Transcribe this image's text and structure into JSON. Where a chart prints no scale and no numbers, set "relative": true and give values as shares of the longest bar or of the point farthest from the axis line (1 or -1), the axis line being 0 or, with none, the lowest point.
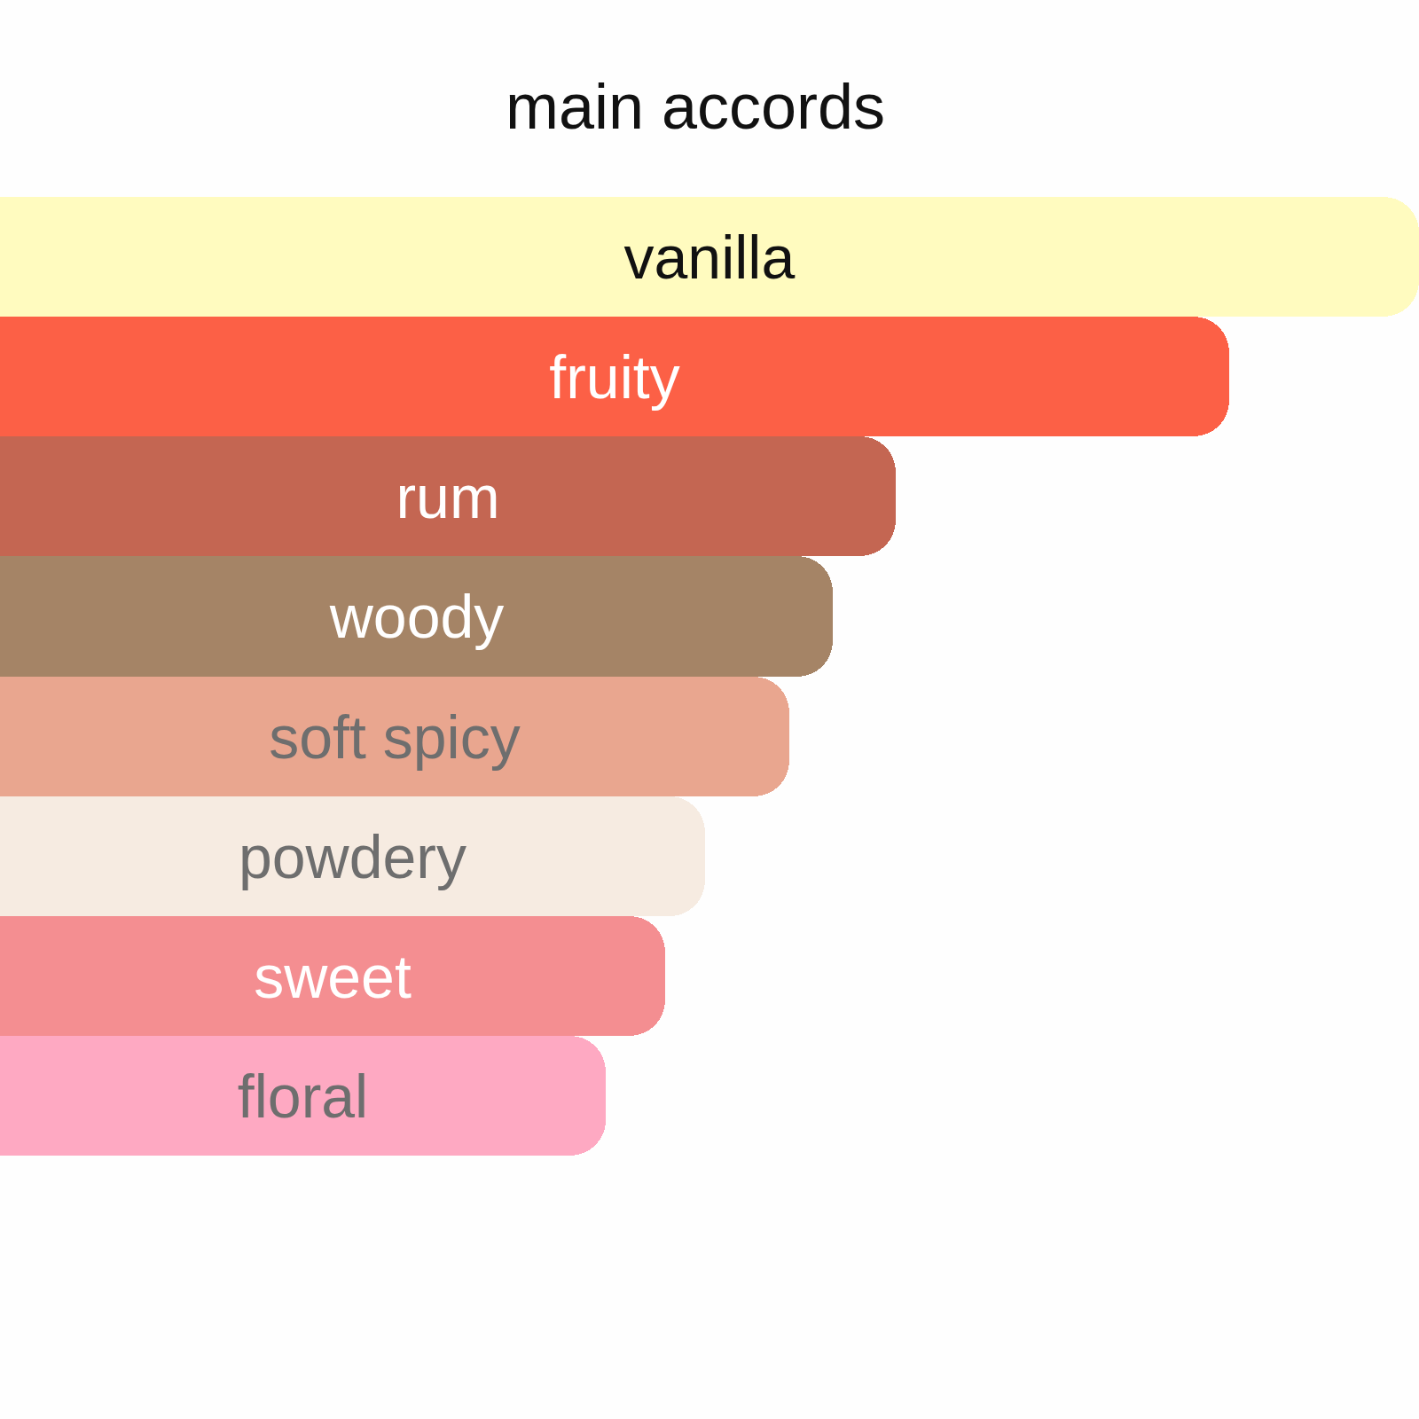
{
  "chart_data": {
    "type": "bar",
    "title": "main accords",
    "orientation": "horizontal",
    "relative": true,
    "categories": [
      "vanilla",
      "fruity",
      "rum",
      "woody",
      "soft spicy",
      "powdery",
      "sweet",
      "floral"
    ],
    "values": [
      1,
      0.866,
      0.631,
      0.587,
      0.556,
      0.497,
      0.469,
      0.427
    ],
    "colors": [
      "#fffbbf",
      "#fc6046",
      "#c46652",
      "#a58466",
      "#e9a68f",
      "#f6ebe1",
      "#f48e91",
      "#fea9c2"
    ]
  }
}
